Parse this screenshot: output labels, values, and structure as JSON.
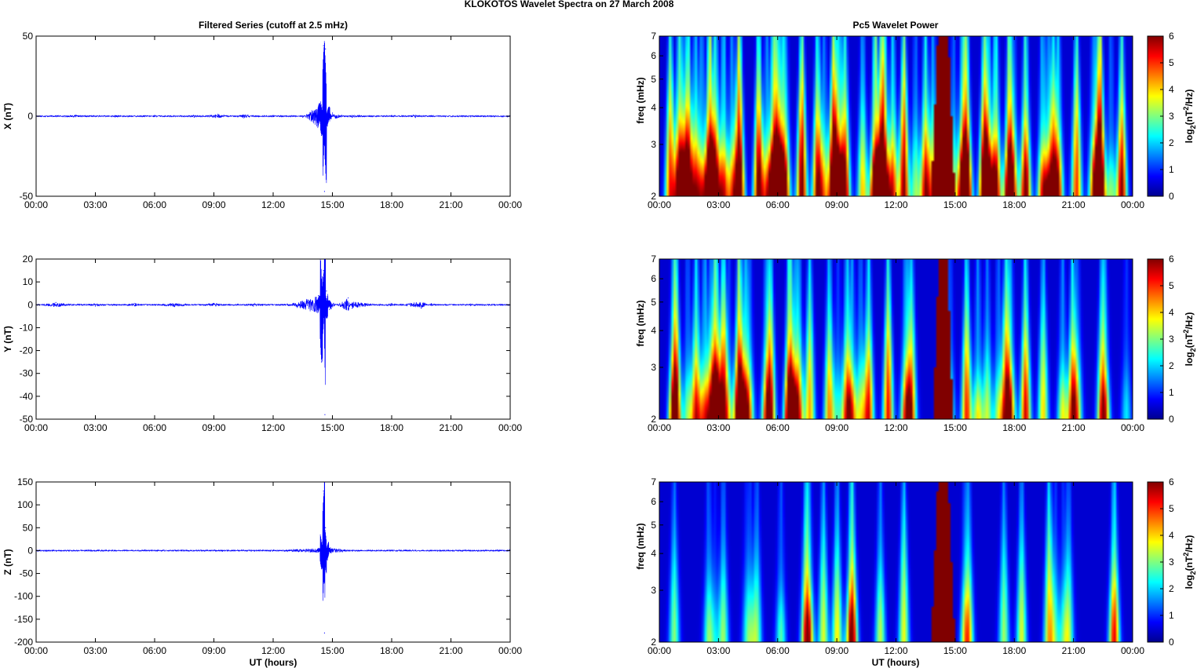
{
  "figure": {
    "title": "KLOKOTOS Wavelet Spectra on 27 March     2008",
    "left_title": "Filtered Series (cutoff at 2.5 mHz)",
    "right_title": "Pc5 Wavelet Power",
    "xlabel": "UT (hours)"
  },
  "chart_data": [
    {
      "type": "line",
      "component": "X",
      "ylabel": "X (nT)",
      "xlim": [
        0,
        24
      ],
      "ylim": [
        -50,
        50
      ],
      "yticks": [
        -50,
        0,
        50
      ],
      "xticks": [
        "00:00",
        "03:00",
        "06:00",
        "09:00",
        "12:00",
        "15:00",
        "18:00",
        "21:00",
        "00:00"
      ],
      "line_color": "#0000ff",
      "x_hours": [
        0,
        2,
        4,
        6,
        8,
        9.2,
        10.5,
        12,
        13.5,
        14.35,
        14.45,
        14.55,
        14.6,
        14.65,
        14.75,
        15.0,
        16,
        18,
        19.2,
        20,
        22,
        24
      ],
      "y_nT": [
        0,
        0.6,
        -0.5,
        0.5,
        -0.6,
        1.2,
        -1.0,
        0.5,
        -0.6,
        8,
        -12,
        44,
        -47,
        42,
        -6,
        2,
        -0.8,
        0.5,
        -0.8,
        0.4,
        -0.4,
        0
      ]
    },
    {
      "type": "line",
      "component": "Y",
      "ylabel": "Y (nT)",
      "xlim": [
        0,
        24
      ],
      "ylim": [
        -50,
        20
      ],
      "yticks": [
        -50,
        -40,
        -30,
        -20,
        -10,
        0,
        10,
        20
      ],
      "xticks": [
        "00:00",
        "03:00",
        "06:00",
        "09:00",
        "12:00",
        "15:00",
        "18:00",
        "21:00",
        "00:00"
      ],
      "line_color": "#0000ff",
      "x_hours": [
        0,
        1,
        3,
        5,
        7,
        9,
        11,
        13,
        14.3,
        14.45,
        14.55,
        14.62,
        14.7,
        14.85,
        15.8,
        16,
        18,
        19.5,
        20,
        22,
        24
      ],
      "y_nT": [
        0,
        1.0,
        -0.6,
        0.6,
        -0.8,
        0.6,
        -0.6,
        0.6,
        4,
        -25,
        15,
        -48,
        6,
        -2,
        3,
        -1.5,
        0.6,
        -1.5,
        0.5,
        -0.4,
        0
      ]
    },
    {
      "type": "line",
      "component": "Z",
      "ylabel": "Z (nT)",
      "xlim": [
        0,
        24
      ],
      "ylim": [
        -200,
        150
      ],
      "yticks": [
        -200,
        -150,
        -100,
        -50,
        0,
        50,
        100,
        150
      ],
      "xticks": [
        "00:00",
        "03:00",
        "06:00",
        "09:00",
        "12:00",
        "15:00",
        "18:00",
        "21:00",
        "00:00"
      ],
      "line_color": "#0000ff",
      "x_hours": [
        0,
        4,
        8,
        12,
        14.3,
        14.45,
        14.55,
        14.6,
        14.65,
        14.75,
        14.9,
        16,
        20,
        24
      ],
      "y_nT": [
        0,
        0.5,
        -0.5,
        0.5,
        5,
        -40,
        130,
        -180,
        50,
        -20,
        6,
        0.5,
        -0.5,
        0
      ]
    },
    {
      "type": "heatmap",
      "component": "X",
      "ylabel": "freq (mHz)",
      "xlim": [
        0,
        24
      ],
      "ylim": [
        2,
        7
      ],
      "y_scale": "log",
      "yticks": [
        2,
        3,
        4,
        5,
        6,
        7
      ],
      "xticks": [
        "00:00",
        "03:00",
        "06:00",
        "09:00",
        "12:00",
        "15:00",
        "18:00",
        "21:00",
        "00:00"
      ],
      "colorbar_label": "log2(nT²/Hz)",
      "clim": [
        0,
        6
      ],
      "colorbar_ticks": [
        0,
        1,
        2,
        3,
        4,
        5,
        6
      ],
      "activity": "high",
      "saturated_band_hours": [
        13.8,
        15.0
      ],
      "strong_bursts_hours": [
        0.5,
        1.4,
        2.8,
        4.0,
        5.0,
        7.2,
        8.0,
        8.8,
        9.4,
        10.3,
        11.3,
        12.4,
        13.5,
        15.6,
        16.5,
        17.8,
        18.6,
        20.0,
        21.2,
        22.4,
        23.5
      ]
    },
    {
      "type": "heatmap",
      "component": "Y",
      "ylabel": "freq (mHz)",
      "xlim": [
        0,
        24
      ],
      "ylim": [
        2,
        7
      ],
      "y_scale": "log",
      "yticks": [
        2,
        3,
        4,
        5,
        6,
        7
      ],
      "xticks": [
        "00:00",
        "03:00",
        "06:00",
        "09:00",
        "12:00",
        "15:00",
        "18:00",
        "21:00",
        "00:00"
      ],
      "colorbar_label": "log2(nT²/Hz)",
      "clim": [
        0,
        6
      ],
      "colorbar_ticks": [
        0,
        1,
        2,
        3,
        4,
        5,
        6
      ],
      "activity": "medium",
      "saturated_band_hours": [
        13.9,
        14.9
      ],
      "strong_bursts_hours": [
        0.8,
        1.8,
        3.2,
        4.0,
        5.6,
        6.6,
        7.6,
        8.6,
        9.5,
        10.6,
        11.6,
        12.8,
        15.6,
        17.6,
        18.6,
        19.5,
        21.0,
        22.5
      ]
    },
    {
      "type": "heatmap",
      "component": "Z",
      "ylabel": "freq (mHz)",
      "xlim": [
        0,
        24
      ],
      "ylim": [
        2,
        7
      ],
      "y_scale": "log",
      "yticks": [
        2,
        3,
        4,
        5,
        6,
        7
      ],
      "xticks": [
        "00:00",
        "03:00",
        "06:00",
        "09:00",
        "12:00",
        "15:00",
        "18:00",
        "21:00",
        "00:00"
      ],
      "colorbar_label": "log2(nT²/Hz)",
      "clim": [
        0,
        6
      ],
      "colorbar_ticks": [
        0,
        1,
        2,
        3,
        4,
        5,
        6
      ],
      "activity": "low",
      "saturated_band_hours": [
        13.8,
        15.0
      ],
      "strong_bursts_hours": [
        0.7,
        3.2,
        4.9,
        7.4,
        8.3,
        9.0,
        9.8,
        11.2,
        12.4,
        15.7,
        17.5,
        18.4,
        19.8,
        20.8,
        23.1
      ]
    }
  ]
}
